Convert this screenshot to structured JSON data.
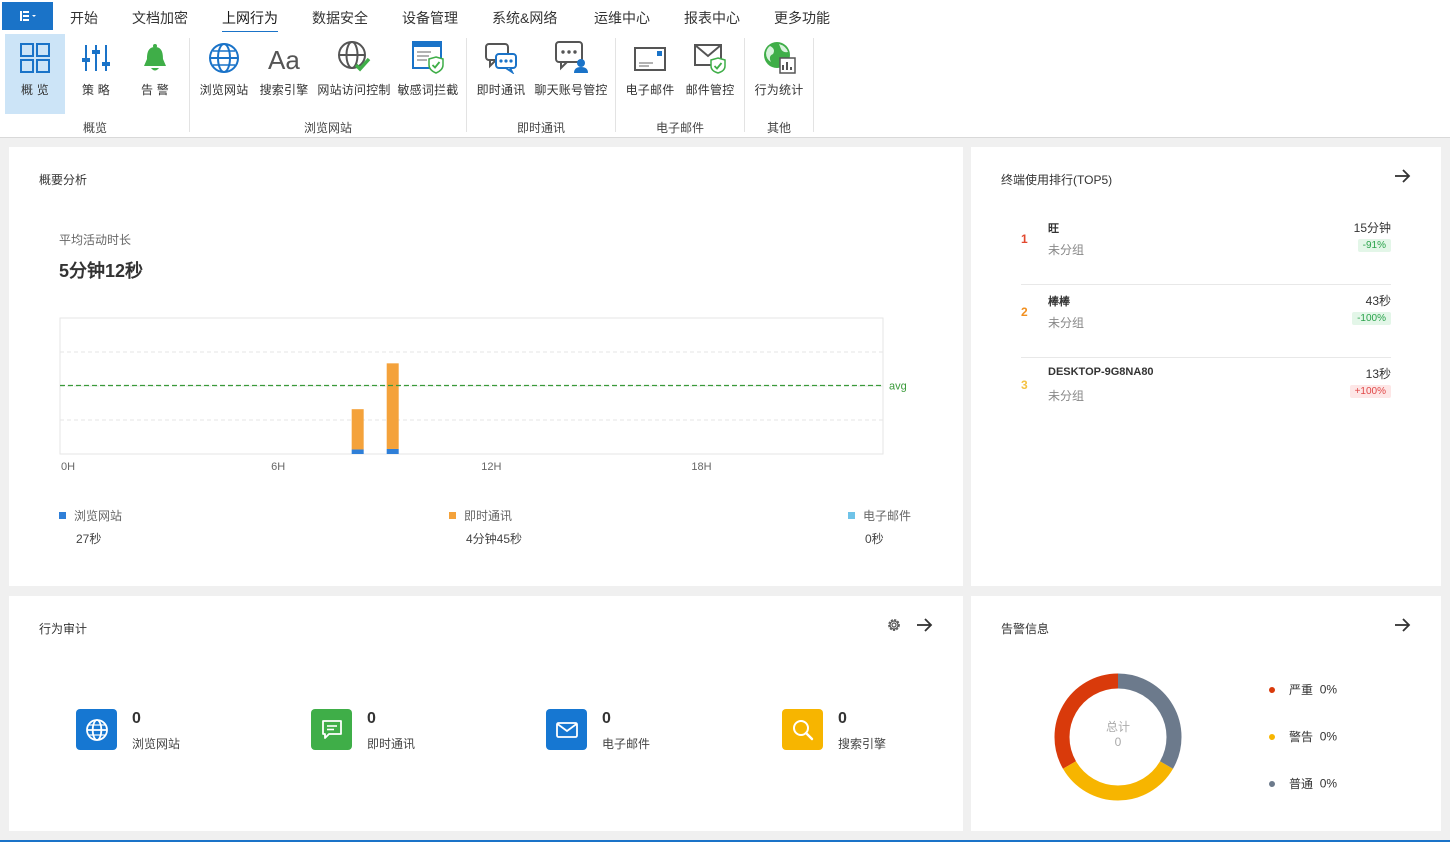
{
  "menu": {
    "items": [
      "开始",
      "文档加密",
      "上网行为",
      "数据安全",
      "设备管理",
      "系统&网络",
      "运维中心",
      "报表中心",
      "更多功能"
    ],
    "active_index": 2
  },
  "ribbon": {
    "buttons": [
      "概 览",
      "策 略",
      "告 警",
      "浏览网站",
      "搜索引擎",
      "网站访问控制",
      "敏感词拦截",
      "即时通讯",
      "聊天账号管控",
      "电子邮件",
      "邮件管控",
      "行为统计"
    ],
    "groups": [
      "概览",
      "浏览网站",
      "即时通讯",
      "电子邮件",
      "其他"
    ],
    "selected_index": 0
  },
  "summary": {
    "title": "概要分析",
    "avg_label": "平均活动时长",
    "avg_value": "5分钟12秒",
    "legend": [
      {
        "name": "浏览网站",
        "value": "27秒",
        "color": "#2f7fd8"
      },
      {
        "name": "即时通讯",
        "value": "4分钟45秒",
        "color": "#f4a23b"
      },
      {
        "name": "电子邮件",
        "value": "0秒",
        "color": "#6fc3e8"
      }
    ]
  },
  "chart_data": {
    "type": "bar",
    "stacked": true,
    "x_ticks": [
      "0H",
      "6H",
      "12H",
      "18H"
    ],
    "xlim": [
      0,
      23.5
    ],
    "ylim": [
      0,
      270
    ],
    "avg_line": {
      "label": "avg",
      "value": 136,
      "color": "#3a9a3a"
    },
    "grid": true,
    "bars": [
      {
        "hour": 8,
        "series": [
          {
            "name": "浏览网站",
            "value": 9
          },
          {
            "name": "即时通讯",
            "value": 80
          }
        ]
      },
      {
        "hour": 9,
        "series": [
          {
            "name": "浏览网站",
            "value": 10
          },
          {
            "name": "即时通讯",
            "value": 170
          }
        ]
      }
    ]
  },
  "ranking": {
    "title": "终端使用排行(TOP5)",
    "items": [
      {
        "no": "1",
        "name": "旺",
        "group": "未分组",
        "time": "15分钟",
        "change": "-91%",
        "trend": "down",
        "color": "#e2492f"
      },
      {
        "no": "2",
        "name": "棒棒",
        "group": "未分组",
        "time": "43秒",
        "change": "-100%",
        "trend": "down",
        "color": "#f18f1f"
      },
      {
        "no": "3",
        "name": "DESKTOP-9G8NA80",
        "group": "未分组",
        "time": "13秒",
        "change": "+100%",
        "trend": "up",
        "color": "#f5c242"
      }
    ]
  },
  "audit": {
    "title": "行为审计",
    "items": [
      {
        "label": "浏览网站",
        "count": "0",
        "color": "#1677d2",
        "icon": "globe-icon"
      },
      {
        "label": "即时通讯",
        "count": "0",
        "color": "#3fae48",
        "icon": "chat-icon"
      },
      {
        "label": "电子邮件",
        "count": "0",
        "color": "#1677d2",
        "icon": "mail-icon"
      },
      {
        "label": "搜索引擎",
        "count": "0",
        "color": "#f7b500",
        "icon": "search-icon"
      }
    ]
  },
  "alarm": {
    "title": "告警信息",
    "total_label": "总计",
    "total_value": "0",
    "levels": [
      {
        "name": "严重",
        "pct": "0%",
        "color": "#d93a0b"
      },
      {
        "name": "警告",
        "pct": "0%",
        "color": "#f7b500"
      },
      {
        "name": "普通",
        "pct": "0%",
        "color": "#6c7a8c"
      }
    ]
  }
}
